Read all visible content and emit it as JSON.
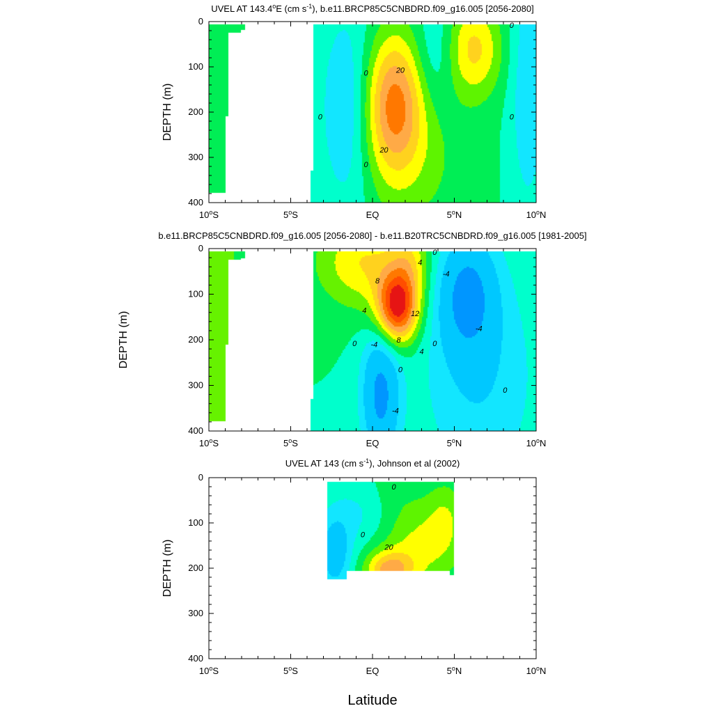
{
  "figure": {
    "xlabel": "Latitude"
  },
  "chart_data": [
    {
      "type": "heatmap",
      "panel_name": "panel-model-uvel",
      "title_parts": [
        "UVEL AT 143.4",
        "o",
        "E (cm s",
        "-1",
        "), b.e11.BRCP85C5CNBDRD.f09_g16.005 [2056-2080]"
      ],
      "ylabel": "DEPTH (m)",
      "xlim": [
        -10,
        10
      ],
      "ylim": [
        400,
        0
      ],
      "x_ticks": [
        {
          "value": -10,
          "deg": "10",
          "hemi": "S"
        },
        {
          "value": -5,
          "deg": "5",
          "hemi": "S"
        },
        {
          "value": 0,
          "label": "EQ"
        },
        {
          "value": 5,
          "deg": "5",
          "hemi": "N"
        },
        {
          "value": 10,
          "deg": "10",
          "hemi": "N"
        }
      ],
      "y_ticks": [
        0,
        100,
        200,
        300,
        400
      ],
      "palette": "uvel",
      "blobs": [
        {
          "x": 1.3,
          "y": 180,
          "sx": 1.3,
          "sy": 110,
          "a": 50
        },
        {
          "x": 6.2,
          "y": 60,
          "sx": 1.2,
          "sy": 75,
          "a": 32
        },
        {
          "x": 2.5,
          "y": 300,
          "sx": 2.5,
          "sy": 130,
          "a": 12
        },
        {
          "x": -1.5,
          "y": 200,
          "sx": 1.2,
          "sy": 160,
          "a": -22
        },
        {
          "x": 3.8,
          "y": 80,
          "sx": 0.9,
          "sy": 90,
          "a": -14
        },
        {
          "x": 9.5,
          "y": 150,
          "sx": 0.8,
          "sy": 200,
          "a": -18
        }
      ],
      "contour_labels": [
        {
          "x": -0.4,
          "y": 113,
          "text": "0"
        },
        {
          "x": -3.2,
          "y": 210,
          "text": "0"
        },
        {
          "x": -0.4,
          "y": 315,
          "text": "0"
        },
        {
          "x": 1.7,
          "y": 107,
          "text": "20"
        },
        {
          "x": 0.7,
          "y": 283,
          "text": "20"
        },
        {
          "x": 8.5,
          "y": 8,
          "text": "0"
        },
        {
          "x": 8.5,
          "y": 210,
          "text": "0"
        }
      ]
    },
    {
      "type": "heatmap",
      "panel_name": "panel-difference",
      "title_parts": [
        "b.e11.BRCP85C5CNBDRD.f09_g16.005 [2056-2080] - b.e11.B20TRC5CNBDRD.f09_g16.005 [1981-2005]"
      ],
      "ylabel": "DEPTH (m)",
      "xlim": [
        -10,
        10
      ],
      "ylim": [
        400,
        0
      ],
      "x_ticks": [
        {
          "value": -10,
          "deg": "10",
          "hemi": "S"
        },
        {
          "value": -5,
          "deg": "5",
          "hemi": "S"
        },
        {
          "value": 0,
          "label": "EQ"
        },
        {
          "value": 5,
          "deg": "5",
          "hemi": "N"
        },
        {
          "value": 10,
          "deg": "10",
          "hemi": "N"
        }
      ],
      "y_ticks": [
        0,
        100,
        200,
        300,
        400
      ],
      "palette": "diff",
      "blobs": [
        {
          "x": 1.5,
          "y": 130,
          "sx": 0.9,
          "sy": 55,
          "a": 15
        },
        {
          "x": -0.5,
          "y": 30,
          "sx": 2.0,
          "sy": 70,
          "a": 6
        },
        {
          "x": 2.3,
          "y": 30,
          "sx": 0.8,
          "sy": 60,
          "a": 4
        },
        {
          "x": 0.5,
          "y": 320,
          "sx": 0.8,
          "sy": 100,
          "a": -9
        },
        {
          "x": 5.8,
          "y": 100,
          "sx": 1.2,
          "sy": 90,
          "a": -8
        },
        {
          "x": 6.5,
          "y": 280,
          "sx": 2.5,
          "sy": 180,
          "a": -4
        }
      ],
      "contour_labels": [
        {
          "x": 0.3,
          "y": 70,
          "text": "8"
        },
        {
          "x": -0.5,
          "y": 135,
          "text": "4"
        },
        {
          "x": 2.6,
          "y": 142,
          "text": "12"
        },
        {
          "x": 1.6,
          "y": 200,
          "text": "8"
        },
        {
          "x": 3.0,
          "y": 225,
          "text": "4"
        },
        {
          "x": -1.1,
          "y": 208,
          "text": "0"
        },
        {
          "x": 0.1,
          "y": 210,
          "text": "-4"
        },
        {
          "x": 1.7,
          "y": 265,
          "text": "0"
        },
        {
          "x": 1.4,
          "y": 355,
          "text": "-4"
        },
        {
          "x": 2.9,
          "y": 30,
          "text": "4"
        },
        {
          "x": 3.8,
          "y": 8,
          "text": "0"
        },
        {
          "x": 4.5,
          "y": 55,
          "text": "-4"
        },
        {
          "x": 3.8,
          "y": 208,
          "text": "0"
        },
        {
          "x": 6.5,
          "y": 175,
          "text": "-4"
        },
        {
          "x": 8.1,
          "y": 310,
          "text": "0"
        }
      ]
    },
    {
      "type": "heatmap",
      "panel_name": "panel-johnson-obs",
      "title_parts": [
        "UVEL AT 143 (cm s",
        "-1",
        "), Johnson et al (2002)"
      ],
      "ylabel": "DEPTH (m)",
      "xlim": [
        -10,
        10
      ],
      "ylim": [
        400,
        0
      ],
      "x_ticks": [
        {
          "value": -10,
          "deg": "10",
          "hemi": "S"
        },
        {
          "value": -5,
          "deg": "5",
          "hemi": "S"
        },
        {
          "value": 0,
          "label": "EQ"
        },
        {
          "value": 5,
          "deg": "5",
          "hemi": "N"
        },
        {
          "value": 10,
          "deg": "10",
          "hemi": "N"
        }
      ],
      "y_ticks": [
        0,
        100,
        200,
        300,
        400
      ],
      "palette": "uvel",
      "blobs": [
        {
          "x": 1.0,
          "y": 205,
          "sx": 1.0,
          "sy": 30,
          "a": 40
        },
        {
          "x": 2.8,
          "y": 150,
          "sx": 1.6,
          "sy": 70,
          "a": 22
        },
        {
          "x": 4.5,
          "y": 90,
          "sx": 0.8,
          "sy": 60,
          "a": 15
        },
        {
          "x": -2.3,
          "y": 170,
          "sx": 0.7,
          "sy": 55,
          "a": -30
        },
        {
          "x": -1.0,
          "y": 80,
          "sx": 1.4,
          "sy": 50,
          "a": -12
        },
        {
          "x": 1.2,
          "y": 30,
          "sx": 1.2,
          "sy": 40,
          "a": 4
        }
      ],
      "contour_labels": [
        {
          "x": 1.3,
          "y": 20,
          "text": "0"
        },
        {
          "x": -0.6,
          "y": 125,
          "text": "0"
        },
        {
          "x": 1.0,
          "y": 153,
          "text": "20"
        }
      ]
    }
  ]
}
